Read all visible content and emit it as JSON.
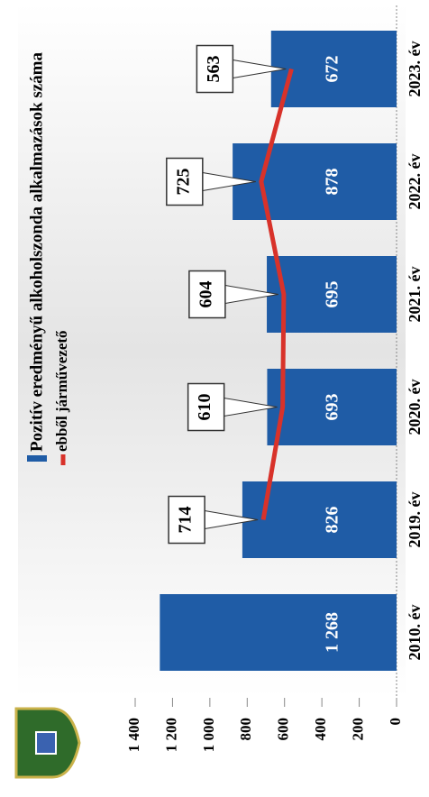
{
  "chart_data": {
    "type": "bar+line",
    "categories": [
      "2010. év",
      "2019. év",
      "2020. év",
      "2021. év",
      "2022. év",
      "2023. év"
    ],
    "series": [
      {
        "name": "Pozitív eredményű alkoholszonda alkalmazások száma",
        "type": "bar",
        "color": "#1f5ca6",
        "values": [
          1268,
          826,
          693,
          695,
          878,
          672
        ],
        "value_labels": [
          "1 268",
          "826",
          "693",
          "695",
          "878",
          "672"
        ]
      },
      {
        "name": "ebből járművezető",
        "type": "line",
        "color": "#d8322a",
        "values": [
          null,
          714,
          610,
          604,
          725,
          563
        ]
      }
    ],
    "ylim": [
      0,
      1400
    ],
    "yticks": [
      0,
      200,
      400,
      600,
      800,
      {
        "value": 1000,
        "label": "1 000"
      },
      {
        "value": 1200,
        "label": "1 200"
      },
      {
        "value": 1400,
        "label": "1 400"
      }
    ],
    "grid": false
  }
}
